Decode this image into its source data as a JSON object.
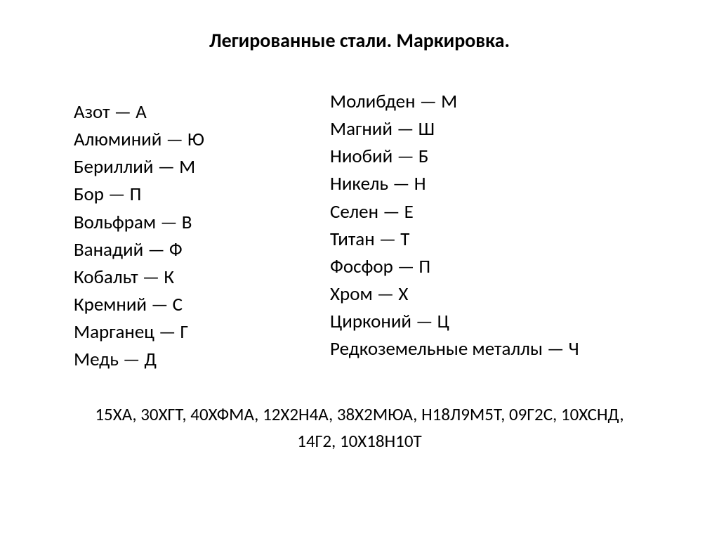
{
  "title": "Легированные стали. Маркировка.",
  "leftColumn": [
    {
      "name": "Азот",
      "code": "А"
    },
    {
      "name": "Алюминий",
      "code": "Ю"
    },
    {
      "name": "Бериллий",
      "code": "М"
    },
    {
      "name": "Бор",
      "code": "П"
    },
    {
      "name": "Вольфрам",
      "code": "В"
    },
    {
      "name": "Ванадий",
      "code": "Ф"
    },
    {
      "name": "Кобальт",
      "code": "К"
    },
    {
      "name": "Кремний",
      "code": "С"
    },
    {
      "name": "Марганец",
      "code": "Г"
    },
    {
      "name": "Медь",
      "code": "Д"
    }
  ],
  "rightColumn": [
    {
      "name": "Молибден",
      "code": "М"
    },
    {
      "name": "Магний",
      "code": "Ш"
    },
    {
      "name": "Ниобий",
      "code": "Б"
    },
    {
      "name": "Никель",
      "code": "Н"
    },
    {
      "name": "Селен",
      "code": "Е"
    },
    {
      "name": "Титан",
      "code": "Т"
    },
    {
      "name": "Фосфор",
      "code": "П"
    },
    {
      "name": "Хром",
      "code": "Х"
    },
    {
      "name": "Цирконий",
      "code": "Ц"
    },
    {
      "name": "Редкоземельные металлы",
      "code": "Ч"
    }
  ],
  "examples": "15ХА, 30ХГТ, 40ХФМА, 12Х2Н4А, 38Х2МЮА, Н18Л9М5Т, 09Г2С, 10ХСНД, 14Г2, 10Х18Н10Т",
  "separator": " — ",
  "colors": {
    "background": "#ffffff",
    "text": "#000000"
  },
  "typography": {
    "title_fontsize": 28,
    "title_weight": "bold",
    "item_fontsize": 27,
    "examples_fontsize": 25,
    "font_family": "Calibri"
  }
}
